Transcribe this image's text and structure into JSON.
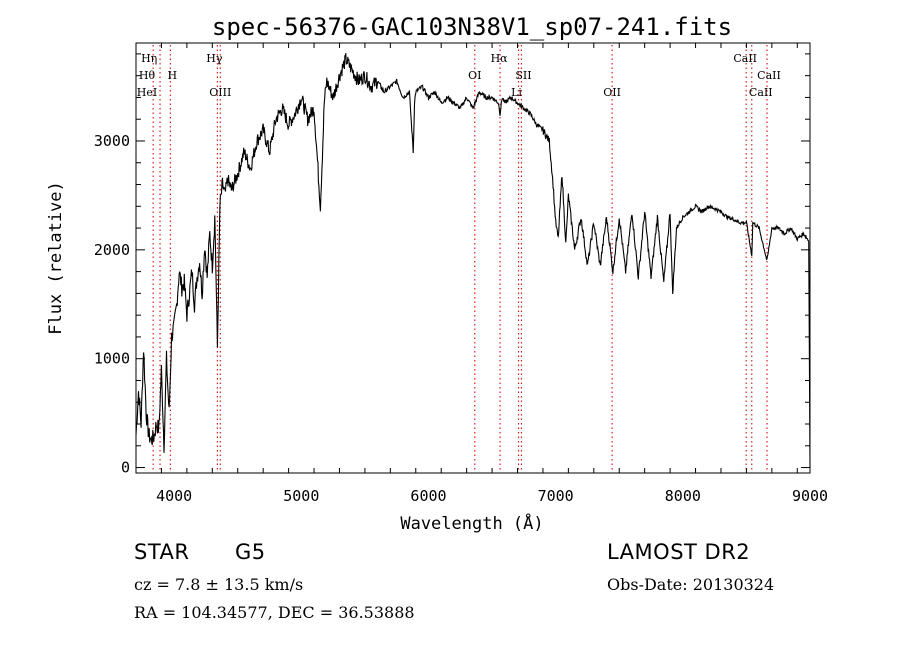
{
  "chart_data": {
    "type": "line",
    "title": "spec-56376-GAC103N38V1_sp07-241.fits",
    "xlabel": "Wavelength (Å)",
    "ylabel": "Flux (relative)",
    "xlim": [
      3700,
      9000
    ],
    "ylim": [
      -50,
      3900
    ],
    "x_ticks": [
      4000,
      5000,
      6000,
      7000,
      8000,
      9000
    ],
    "y_ticks": [
      0,
      1000,
      2000,
      3000
    ],
    "grid": false,
    "series": [
      {
        "x": [
          3700,
          3720,
          3740,
          3760,
          3780,
          3800,
          3820,
          3840,
          3860,
          3880,
          3900,
          3920,
          3940,
          3960,
          3980,
          4000,
          4020,
          4040,
          4060,
          4080,
          4100,
          4120,
          4140,
          4160,
          4180,
          4200,
          4220,
          4240,
          4260,
          4280,
          4300,
          4320,
          4340,
          4360,
          4380,
          4400,
          4420,
          4450,
          4500,
          4550,
          4600,
          4650,
          4700,
          4750,
          4800,
          4850,
          4900,
          4950,
          5000,
          5050,
          5100,
          5150,
          5170,
          5180,
          5200,
          5250,
          5300,
          5350,
          5400,
          5450,
          5500,
          5550,
          5600,
          5650,
          5700,
          5750,
          5800,
          5850,
          5880,
          5890,
          5900,
          5950,
          6000,
          6050,
          6100,
          6150,
          6200,
          6250,
          6300,
          6350,
          6400,
          6450,
          6500,
          6550,
          6562,
          6580,
          6600,
          6650,
          6700,
          6750,
          6800,
          6850,
          6900,
          6950,
          6980,
          7000,
          7020,
          7050,
          7080,
          7100,
          7150,
          7200,
          7250,
          7300,
          7350,
          7400,
          7450,
          7500,
          7550,
          7600,
          7650,
          7700,
          7750,
          7800,
          7850,
          7900,
          7920,
          7950,
          8000,
          8050,
          8100,
          8150,
          8200,
          8250,
          8300,
          8350,
          8400,
          8450,
          8500,
          8542,
          8550,
          8600,
          8662,
          8700,
          8750,
          8800,
          8850,
          8900,
          8950,
          8980,
          8990,
          8995,
          9000
        ],
        "y": [
          300,
          700,
          400,
          1100,
          500,
          300,
          250,
          280,
          400,
          350,
          900,
          200,
          1000,
          500,
          1200,
          1300,
          1500,
          1800,
          1650,
          1700,
          1400,
          1600,
          1800,
          1500,
          1750,
          1900,
          1600,
          2050,
          1750,
          2150,
          1850,
          2300,
          1100,
          2400,
          2600,
          2500,
          2650,
          2550,
          2700,
          2900,
          2750,
          3000,
          3100,
          2900,
          3200,
          3300,
          3150,
          3250,
          3400,
          3200,
          3300,
          2400,
          3000,
          3350,
          3550,
          3400,
          3600,
          3750,
          3650,
          3550,
          3600,
          3500,
          3550,
          3450,
          3500,
          3550,
          3400,
          3450,
          2900,
          3350,
          3450,
          3500,
          3400,
          3450,
          3350,
          3400,
          3350,
          3300,
          3400,
          3300,
          3450,
          3400,
          3400,
          3350,
          3250,
          3400,
          3350,
          3400,
          3350,
          3300,
          3250,
          3150,
          3100,
          3000,
          2600,
          2250,
          2100,
          2700,
          2050,
          2500,
          2000,
          2300,
          1850,
          2250,
          1850,
          2300,
          1800,
          2300,
          1800,
          2350,
          1750,
          2350,
          1750,
          2300,
          1700,
          2350,
          1600,
          2200,
          2300,
          2350,
          2400,
          2350,
          2400,
          2380,
          2350,
          2300,
          2280,
          2250,
          2250,
          1950,
          2250,
          2200,
          1900,
          2200,
          2200,
          2150,
          2200,
          2100,
          2150,
          2100,
          2080,
          1000,
          0
        ]
      }
    ],
    "lines": [
      {
        "x": 3835,
        "labels": [
          "Hη"
        ]
      },
      {
        "x": 3889,
        "labels": [
          "Hθ",
          "HeI"
        ]
      },
      {
        "x": 3970,
        "labels": [
          "H"
        ]
      },
      {
        "x": 4340,
        "labels": [
          "Hγ"
        ]
      },
      {
        "x": 4363,
        "labels": [
          "OIII"
        ]
      },
      {
        "x": 6364,
        "labels": [
          "OI"
        ]
      },
      {
        "x": 6563,
        "labels": [
          "Hα"
        ]
      },
      {
        "x": 6708,
        "labels": [
          "Li"
        ]
      },
      {
        "x": 6731,
        "labels": [
          "SII"
        ]
      },
      {
        "x": 7444,
        "labels": [
          "OII"
        ]
      },
      {
        "x": 8498,
        "labels": [
          "CaII"
        ]
      },
      {
        "x": 8542,
        "labels": [
          "CaII"
        ]
      },
      {
        "x": 8662,
        "labels": [
          "CaII"
        ]
      }
    ],
    "annotations": [
      {
        "text": "Hη"
      },
      {
        "text": "Hθ"
      },
      {
        "text": "H"
      },
      {
        "text": "HeI"
      },
      {
        "text": "Hγ"
      },
      {
        "text": "OIII"
      },
      {
        "text": "OI"
      },
      {
        "text": "Hα"
      },
      {
        "text": "SII"
      },
      {
        "text": "Li"
      },
      {
        "text": "OII"
      },
      {
        "text": "CaII"
      },
      {
        "text": "CaII"
      },
      {
        "text": "CaII"
      }
    ],
    "colors": {
      "series": "#000000",
      "lines": "#d62020",
      "axis": "#000000"
    }
  },
  "info": {
    "class": "STAR",
    "subclass": "G5",
    "survey": "LAMOST DR2",
    "cz": "cz = 7.8 ± 13.5 km/s",
    "obs_date": "Obs-Date: 20130324",
    "coords": "RA = 104.34577, DEC =  36.53888"
  }
}
